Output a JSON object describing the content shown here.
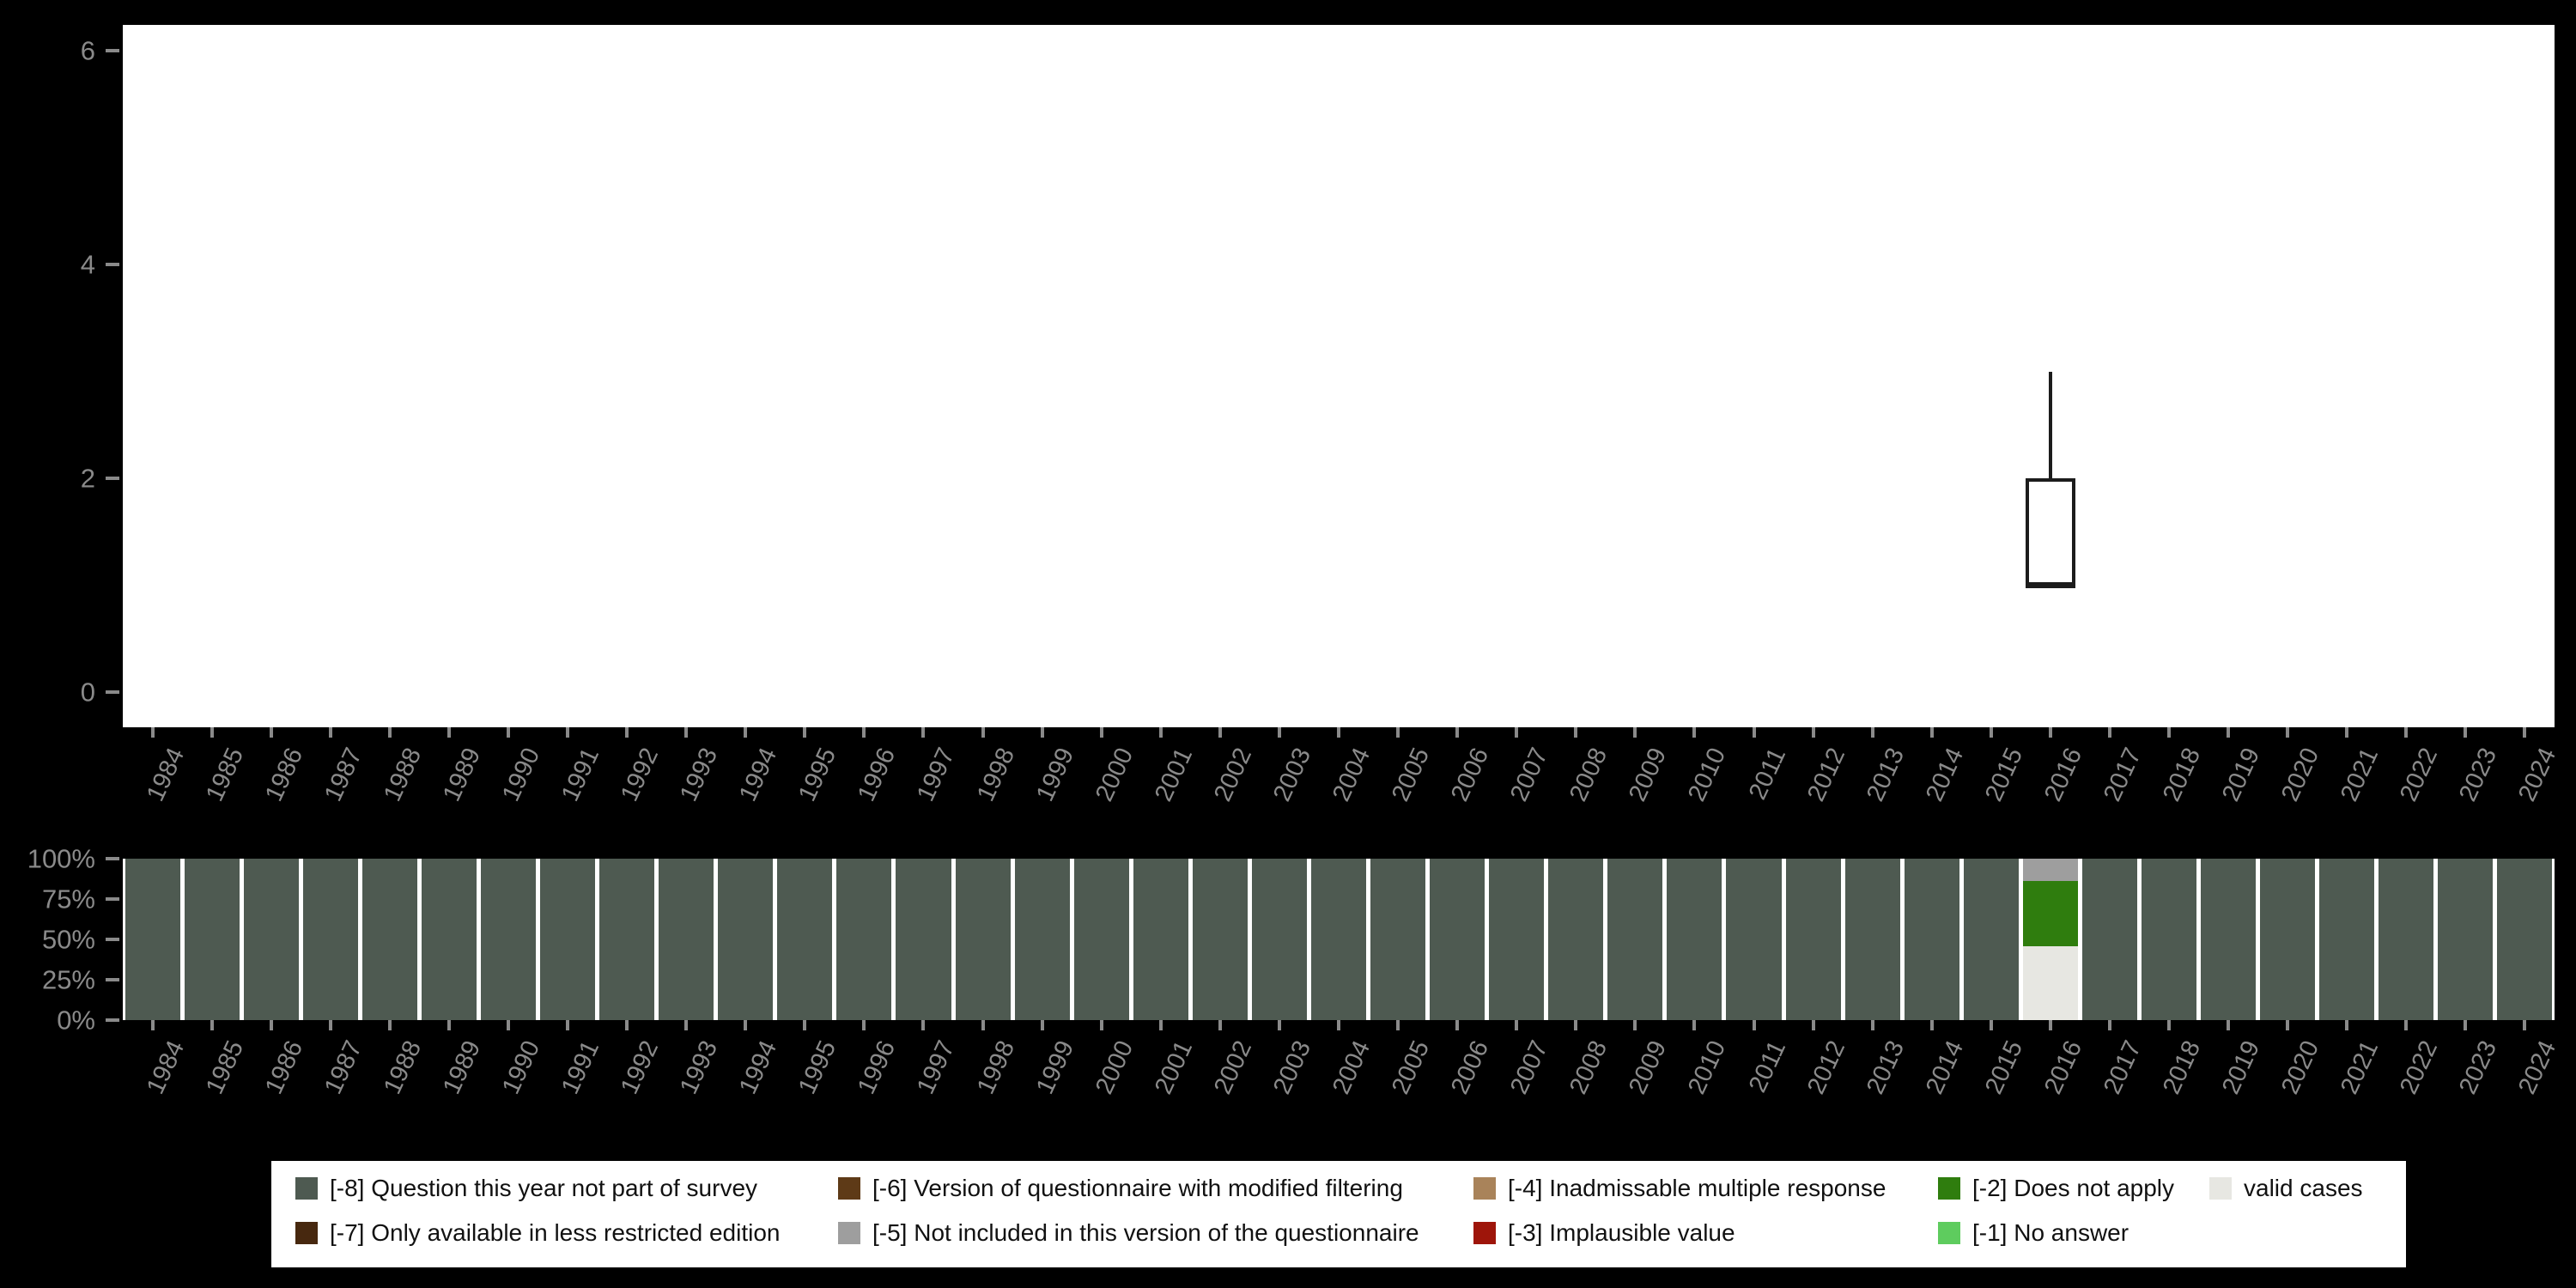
{
  "figure": {
    "background": "#000000",
    "panel_background": "#ffffff",
    "axis_text_color": "#8a8a8a"
  },
  "colors": {
    "-8": "#4e5a51",
    "-7": "#47280f",
    "-6": "#5e3a17",
    "-5": "#9e9e9e",
    "-4": "#a9835a",
    "-3": "#9e150a",
    "-2": "#2f7d0e",
    "-1": "#5ecc5e",
    "valid": "#e7e7e2",
    "box_stroke": "#1c1c1c"
  },
  "chart_data": [
    {
      "type": "boxplot",
      "title": "",
      "xlabel": "",
      "ylabel": "",
      "ylim": [
        0,
        6.3
      ],
      "yticks": [
        0,
        2,
        4,
        6
      ],
      "grid": "off",
      "x_years": [
        "1984",
        "1985",
        "1986",
        "1987",
        "1988",
        "1989",
        "1990",
        "1991",
        "1992",
        "1993",
        "1994",
        "1995",
        "1996",
        "1997",
        "1998",
        "1999",
        "2000",
        "2001",
        "2002",
        "2003",
        "2004",
        "2005",
        "2006",
        "2007",
        "2008",
        "2009",
        "2010",
        "2011",
        "2012",
        "2013",
        "2014",
        "2015",
        "2016",
        "2017",
        "2018",
        "2019",
        "2020",
        "2021",
        "2022",
        "2023",
        "2024"
      ],
      "boxes": [
        {
          "year": "2016",
          "lower_whisker": 1,
          "q1": 1,
          "median": 1,
          "q3": 2,
          "upper_whisker": 3
        }
      ]
    },
    {
      "type": "stacked-bar-percent",
      "title": "",
      "xlabel": "",
      "ylabel": "",
      "ylim_percent": [
        0,
        100
      ],
      "ytick_labels": [
        "0%",
        "25%",
        "50%",
        "75%",
        "100%"
      ],
      "ytick_values": [
        0,
        25,
        50,
        75,
        100
      ],
      "grid": "off",
      "x_years": [
        "1984",
        "1985",
        "1986",
        "1987",
        "1988",
        "1989",
        "1990",
        "1991",
        "1992",
        "1993",
        "1994",
        "1995",
        "1996",
        "1997",
        "1998",
        "1999",
        "2000",
        "2001",
        "2002",
        "2003",
        "2004",
        "2005",
        "2006",
        "2007",
        "2008",
        "2009",
        "2010",
        "2011",
        "2012",
        "2013",
        "2014",
        "2015",
        "2016",
        "2017",
        "2018",
        "2019",
        "2020",
        "2021",
        "2022",
        "2023",
        "2024"
      ],
      "default_segments_bottom_to_top": [
        {
          "key": "-8",
          "pct": 100
        }
      ],
      "overrides": {
        "2016": [
          {
            "key": "valid",
            "pct": 46
          },
          {
            "key": "-2",
            "pct": 40
          },
          {
            "key": "-5",
            "pct": 14
          }
        ]
      }
    }
  ],
  "legend": {
    "rows": [
      [
        {
          "key": "-8",
          "label": "[-8] Question this year not part of survey"
        },
        {
          "key": "-6",
          "label": "[-6] Version of questionnaire with modified filtering"
        },
        {
          "key": "-4",
          "label": "[-4] Inadmissable multiple response"
        },
        {
          "key": "-2",
          "label": "[-2] Does not apply"
        },
        {
          "key": "valid",
          "label": "valid cases"
        }
      ],
      [
        {
          "key": "-7",
          "label": "[-7] Only available in less restricted edition"
        },
        {
          "key": "-5",
          "label": "[-5] Not included in this version of the questionnaire"
        },
        {
          "key": "-3",
          "label": "[-3] Implausible value"
        },
        {
          "key": "-1",
          "label": "[-1] No answer"
        }
      ]
    ]
  }
}
